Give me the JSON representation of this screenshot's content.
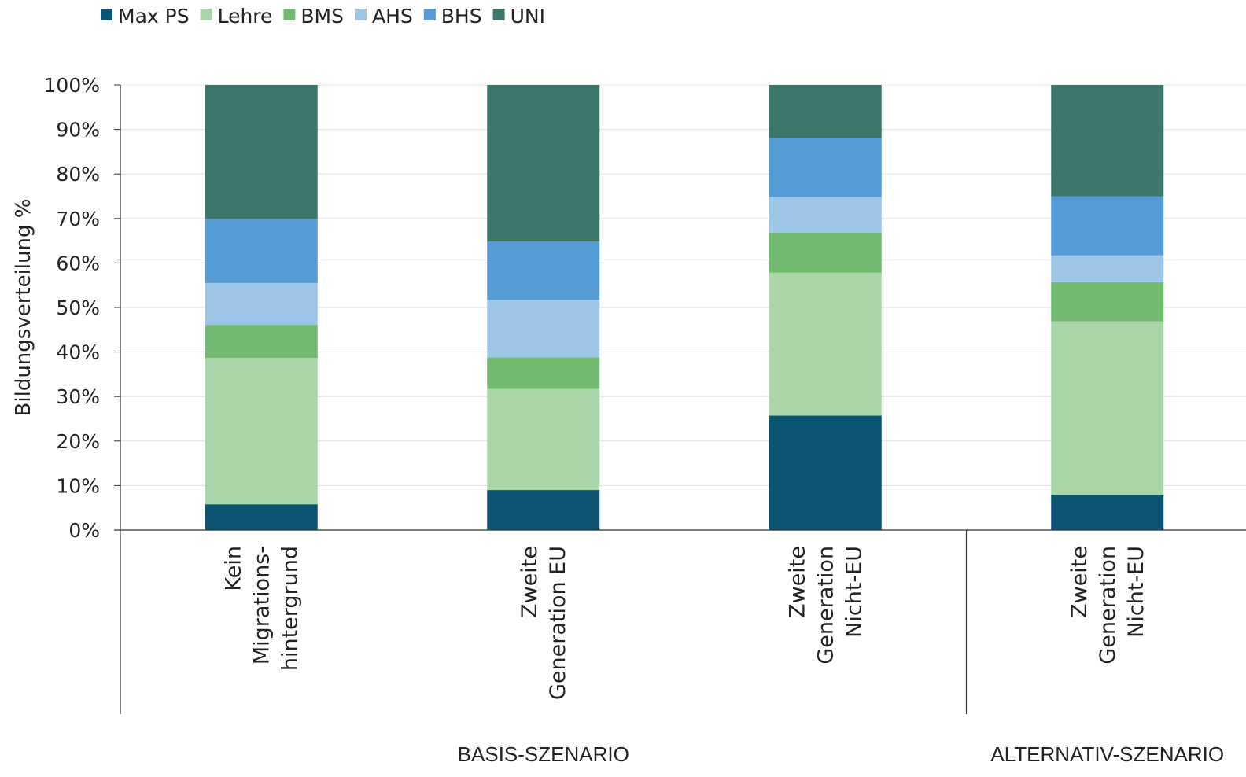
{
  "chart_data": {
    "type": "bar",
    "stacked": true,
    "ylabel": "Bildungsverteilung %",
    "ylim": [
      0,
      100
    ],
    "y_ticks": [
      "0%",
      "10%",
      "20%",
      "30%",
      "40%",
      "50%",
      "60%",
      "70%",
      "80%",
      "90%",
      "100%"
    ],
    "grid": true,
    "legend_position": "top-left",
    "categories": [
      [
        "Kein",
        "Migrations-",
        "hintergrund"
      ],
      [
        "Zweite",
        "Generation EU"
      ],
      [
        "Zweite",
        "Generation",
        "Nicht-EU"
      ],
      [
        "Zweite",
        "Generation",
        "Nicht-EU"
      ]
    ],
    "groups": [
      {
        "label": "BASIS-SZENARIO",
        "span": [
          0,
          2
        ]
      },
      {
        "label": "ALTERNATIV-SZENARIO",
        "span": [
          3,
          3
        ]
      }
    ],
    "series": [
      {
        "name": "Max PS",
        "color": "#0b5572",
        "values": [
          5.8,
          9.0,
          25.7,
          7.8
        ]
      },
      {
        "name": "Lehre",
        "color": "#a9d6a8",
        "values": [
          32.9,
          22.7,
          32.1,
          39.1
        ]
      },
      {
        "name": "BMS",
        "color": "#72ba6f",
        "values": [
          7.4,
          7.1,
          9.0,
          8.8
        ]
      },
      {
        "name": "AHS",
        "color": "#9cc5e6",
        "values": [
          9.4,
          12.9,
          8.0,
          6.0
        ]
      },
      {
        "name": "BHS",
        "color": "#559bd6",
        "values": [
          14.4,
          13.1,
          13.2,
          13.3
        ]
      },
      {
        "name": "UNI",
        "color": "#3d776b",
        "values": [
          30.1,
          35.2,
          12.0,
          25.0
        ]
      }
    ]
  }
}
